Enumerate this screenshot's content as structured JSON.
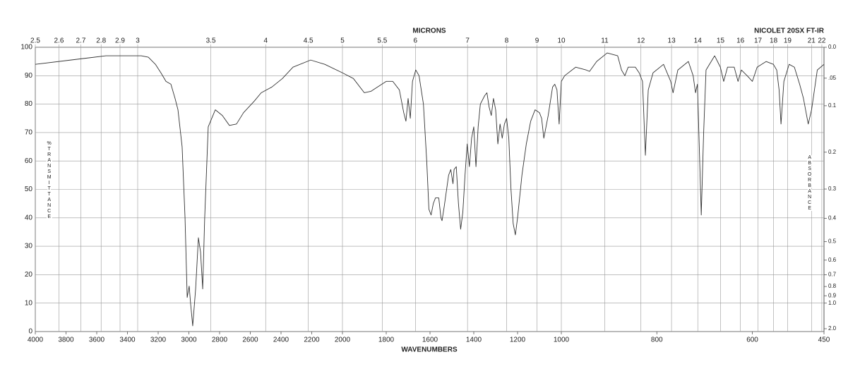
{
  "chart_data": {
    "type": "line",
    "title": "NICOLET 20SX FT-IR",
    "xlabel": "WAVENUMBERS",
    "x2label": "MICRONS",
    "ylabel": "%TRANSMITTANCE",
    "y2label": "ABSORBANCE",
    "color": "#333333",
    "grid": true,
    "xlim": [
      4000,
      450
    ],
    "x_scale_breaks": [
      2000,
      1000
    ],
    "xticks": [
      4000,
      3800,
      3600,
      3400,
      3200,
      3000,
      2800,
      2600,
      2400,
      2200,
      2000,
      1800,
      1600,
      1400,
      1200,
      1000,
      800,
      600,
      450
    ],
    "x2scale": "microns",
    "x2ticks": [
      2.5,
      2.6,
      2.7,
      2.8,
      2.9,
      3,
      3.5,
      4,
      4.5,
      5,
      5.5,
      6,
      7,
      8,
      9,
      10,
      11,
      12,
      13,
      14,
      15,
      16,
      17,
      18,
      19,
      21,
      22
    ],
    "ylim": [
      0,
      100
    ],
    "yticks": [
      0,
      10,
      20,
      30,
      40,
      50,
      60,
      70,
      80,
      90,
      100
    ],
    "y2scale": "absorbance",
    "y2ticks": [
      {
        "value": 0,
        "label": "0.0"
      },
      {
        "value": 0.05,
        "label": ".05"
      },
      0.1,
      0.2,
      0.3,
      0.4,
      0.5,
      0.6,
      0.7,
      0.8,
      0.9,
      {
        "value": 1,
        "label": "1.0"
      },
      {
        "value": 2,
        "label": "2.0"
      }
    ],
    "x": [
      4000,
      3770,
      3540,
      3310,
      3264,
      3218,
      3182,
      3149,
      3117,
      3090,
      3071,
      3044,
      3025,
      3011,
      2998,
      2989,
      2975,
      2956,
      2938,
      2924,
      2910,
      2897,
      2874,
      2828,
      2782,
      2736,
      2690,
      2644,
      2575,
      2529,
      2460,
      2391,
      2322,
      2207,
      2115,
      2000,
      1950,
      1900,
      1870,
      1840,
      1800,
      1770,
      1740,
      1720,
      1710,
      1700,
      1690,
      1680,
      1665,
      1650,
      1630,
      1615,
      1605,
      1595,
      1585,
      1575,
      1560,
      1550,
      1545,
      1535,
      1515,
      1505,
      1495,
      1490,
      1480,
      1470,
      1460,
      1450,
      1440,
      1430,
      1420,
      1410,
      1400,
      1390,
      1380,
      1370,
      1350,
      1340,
      1330,
      1320,
      1310,
      1300,
      1290,
      1280,
      1270,
      1260,
      1250,
      1240,
      1230,
      1220,
      1210,
      1200,
      1180,
      1160,
      1140,
      1120,
      1100,
      1090,
      1080,
      1060,
      1040,
      1030,
      1020,
      1010,
      1000,
      993,
      970,
      948,
      941,
      926,
      904,
      882,
      874,
      867,
      860,
      845,
      837,
      830,
      824,
      818,
      808,
      786,
      771,
      766,
      756,
      734,
      724,
      719,
      715,
      712,
      707,
      702,
      697,
      679,
      667,
      660,
      652,
      638,
      630,
      623,
      611,
      600,
      590,
      571,
      556,
      549,
      544,
      540,
      534,
      523,
      512,
      501,
      493,
      483,
      476,
      464,
      450
    ],
    "values": [
      94,
      95.5,
      97,
      97,
      96.5,
      94,
      91,
      88,
      87,
      82,
      78,
      65,
      40,
      12,
      16,
      10,
      2,
      15,
      33,
      28,
      15,
      40,
      72,
      78,
      76,
      72.5,
      73,
      77,
      81,
      84,
      86,
      89,
      93,
      95.5,
      94,
      91,
      89,
      84,
      84.5,
      86,
      88,
      88,
      85,
      77,
      74,
      82,
      75,
      88,
      92,
      90,
      80,
      60,
      43,
      41,
      45,
      47,
      47,
      40,
      39,
      44,
      55,
      57,
      52,
      57,
      58,
      45,
      36,
      42,
      55,
      66,
      58,
      68,
      72,
      58,
      72,
      80,
      83,
      84,
      79,
      76,
      82,
      78,
      66,
      73,
      68,
      73,
      75,
      68,
      50,
      38,
      34,
      40,
      55,
      66,
      74,
      78,
      77,
      75,
      68,
      76,
      86,
      87,
      85,
      73,
      88,
      90,
      93,
      92,
      91.5,
      95,
      98,
      97,
      92,
      90,
      93,
      93,
      91,
      88,
      62,
      85,
      91,
      94,
      88,
      84,
      92,
      95,
      90,
      84,
      87,
      70,
      41,
      70,
      92,
      97,
      93,
      88,
      93,
      93,
      88,
      92,
      90,
      88,
      93,
      95,
      94,
      92,
      85,
      73,
      88,
      94,
      93,
      87,
      82,
      73,
      78,
      92,
      94
    ]
  }
}
